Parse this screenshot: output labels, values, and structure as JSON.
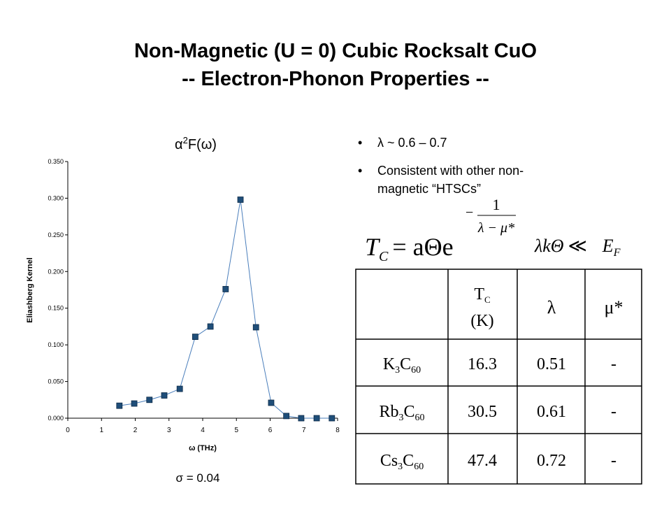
{
  "slide": {
    "title": [
      "Non-Magnetic (U = 0) Cubic Rocksalt CuO",
      "-- Electron-Phonon Properties --"
    ],
    "bullets": [
      [
        "λ ~ 0.6 – 0.7"
      ],
      [
        "Consistent with other non-",
        "magnetic “HTSCs”"
      ]
    ],
    "formula1": {
      "main": "T",
      "sub": "C",
      "mid": "= aΘe",
      "minus": "−",
      "num": "1",
      "den": "λ − μ*"
    },
    "formula2": {
      "text": "λkΘ",
      "rel": "≪",
      "rhs": "E",
      "rhs_sub": "F"
    },
    "table": {
      "header": [
        {
          "parts": [
            "T",
            "C"
          ],
          "unit": "(K)"
        },
        "λ",
        "μ*"
      ],
      "rows": [
        {
          "compound": [
            "K",
            "3",
            "C",
            "60"
          ],
          "values": [
            16.3,
            0.51,
            "-"
          ]
        },
        {
          "compound": [
            "Rb",
            "3",
            "C",
            "60"
          ],
          "values": [
            30.5,
            0.61,
            "-"
          ]
        },
        {
          "compound": [
            "Cs",
            "3",
            "C",
            "60"
          ],
          "values": [
            47.4,
            0.72,
            "-"
          ]
        }
      ]
    }
  },
  "chart_data": {
    "type": "line",
    "title": [
      "α",
      "2",
      "F(ω)"
    ],
    "x_label": "ω (THz)",
    "y_label": "Eliashberg Kernel",
    "annotation": "σ = 0.04",
    "x": [
      1.53,
      1.97,
      2.42,
      2.86,
      3.32,
      3.78,
      4.23,
      4.68,
      5.12,
      5.58,
      6.03,
      6.48,
      6.92,
      7.38,
      7.83
    ],
    "values": [
      0.017,
      0.02,
      0.025,
      0.031,
      0.04,
      0.111,
      0.125,
      0.176,
      0.298,
      0.124,
      0.021,
      0.003,
      0.0,
      0.0,
      0.0
    ],
    "color": "#4a7ebb",
    "marker_color": "#1f4e79",
    "xlim": [
      0,
      8
    ],
    "xticks": [
      0,
      1,
      2,
      3,
      4,
      5,
      6,
      7,
      8
    ],
    "ylim": [
      0,
      0.35
    ],
    "yticks": [
      {
        "value": 0,
        "label": "0.000"
      },
      {
        "value": 0.05,
        "label": "0.050"
      },
      {
        "value": 0.1,
        "label": "0.100"
      },
      {
        "value": 0.15,
        "label": "0.150"
      },
      {
        "value": 0.2,
        "label": "0.200"
      },
      {
        "value": 0.25,
        "label": "0.250"
      },
      {
        "value": 0.3,
        "label": "0.300"
      },
      {
        "value": 0.35,
        "label": "0.350"
      }
    ]
  }
}
